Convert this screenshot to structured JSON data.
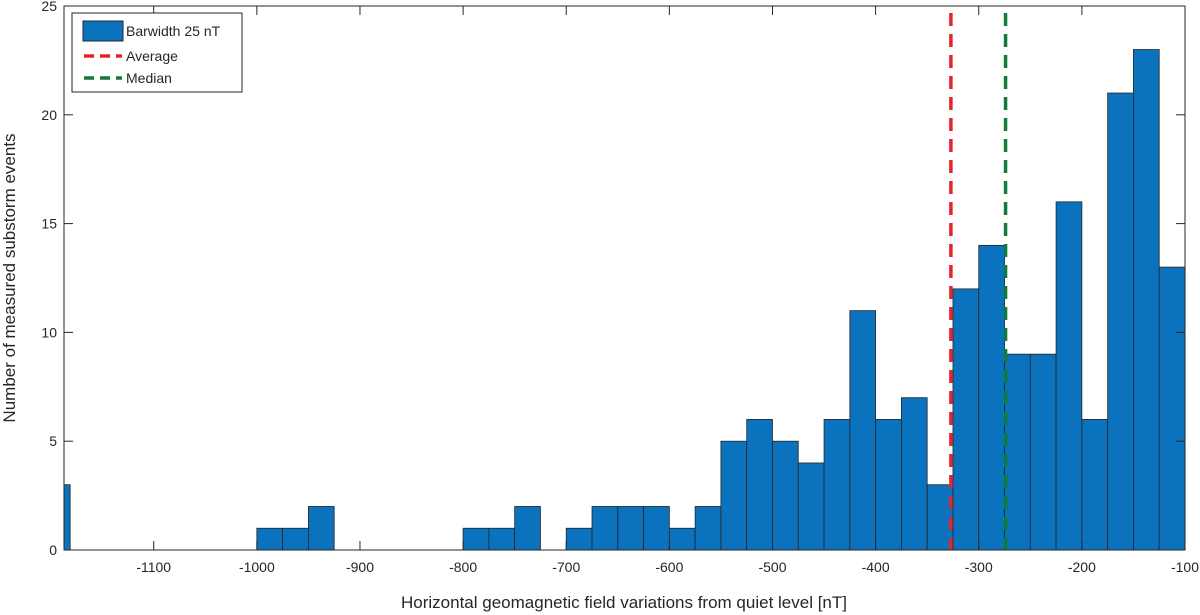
{
  "chart_data": {
    "type": "bar",
    "title": "",
    "xlabel": "Horizontal geomagnetic field variations from quiet level [nT]",
    "ylabel": "Number of measured substorm events",
    "xlim": [
      -1187,
      -100
    ],
    "ylim": [
      0,
      25
    ],
    "xticks": [
      -1100,
      -1000,
      -900,
      -800,
      -700,
      -600,
      -500,
      -400,
      -300,
      -200,
      -100
    ],
    "yticks": [
      0,
      5,
      10,
      15,
      20,
      25
    ],
    "grid": false,
    "legend_position": "top-left",
    "bar_color": "#0b72bd",
    "bin_width": 25,
    "bins": [
      {
        "start": -1187,
        "end": -1181,
        "count": 3
      },
      {
        "start": -1000,
        "end": -975,
        "count": 1
      },
      {
        "start": -975,
        "end": -950,
        "count": 1
      },
      {
        "start": -950,
        "end": -925,
        "count": 2
      },
      {
        "start": -800,
        "end": -775,
        "count": 1
      },
      {
        "start": -775,
        "end": -750,
        "count": 1
      },
      {
        "start": -750,
        "end": -725,
        "count": 2
      },
      {
        "start": -700,
        "end": -675,
        "count": 1
      },
      {
        "start": -675,
        "end": -650,
        "count": 2
      },
      {
        "start": -650,
        "end": -625,
        "count": 2
      },
      {
        "start": -625,
        "end": -600,
        "count": 2
      },
      {
        "start": -600,
        "end": -575,
        "count": 1
      },
      {
        "start": -575,
        "end": -550,
        "count": 2
      },
      {
        "start": -550,
        "end": -525,
        "count": 5
      },
      {
        "start": -525,
        "end": -500,
        "count": 6
      },
      {
        "start": -500,
        "end": -475,
        "count": 5
      },
      {
        "start": -475,
        "end": -450,
        "count": 4
      },
      {
        "start": -450,
        "end": -425,
        "count": 6
      },
      {
        "start": -425,
        "end": -400,
        "count": 11
      },
      {
        "start": -400,
        "end": -375,
        "count": 6
      },
      {
        "start": -375,
        "end": -350,
        "count": 7
      },
      {
        "start": -350,
        "end": -325,
        "count": 3
      },
      {
        "start": -325,
        "end": -300,
        "count": 12
      },
      {
        "start": -300,
        "end": -275,
        "count": 14
      },
      {
        "start": -275,
        "end": -250,
        "count": 9
      },
      {
        "start": -250,
        "end": -225,
        "count": 9
      },
      {
        "start": -225,
        "end": -200,
        "count": 16
      },
      {
        "start": -200,
        "end": -175,
        "count": 6
      },
      {
        "start": -175,
        "end": -150,
        "count": 21
      },
      {
        "start": -150,
        "end": -125,
        "count": 23
      },
      {
        "start": -125,
        "end": -100,
        "count": 13
      }
    ],
    "reference_lines": [
      {
        "name": "Average",
        "x": -327,
        "color": "#e3262b"
      },
      {
        "name": "Median",
        "x": -274,
        "color": "#127a3a"
      }
    ],
    "legend": [
      {
        "label": "Barwidth 25 nT",
        "kind": "bar",
        "color": "#0b72bd"
      },
      {
        "label": "Average",
        "kind": "dashed",
        "color": "#e3262b"
      },
      {
        "label": "Median",
        "kind": "dashed",
        "color": "#127a3a"
      }
    ]
  }
}
